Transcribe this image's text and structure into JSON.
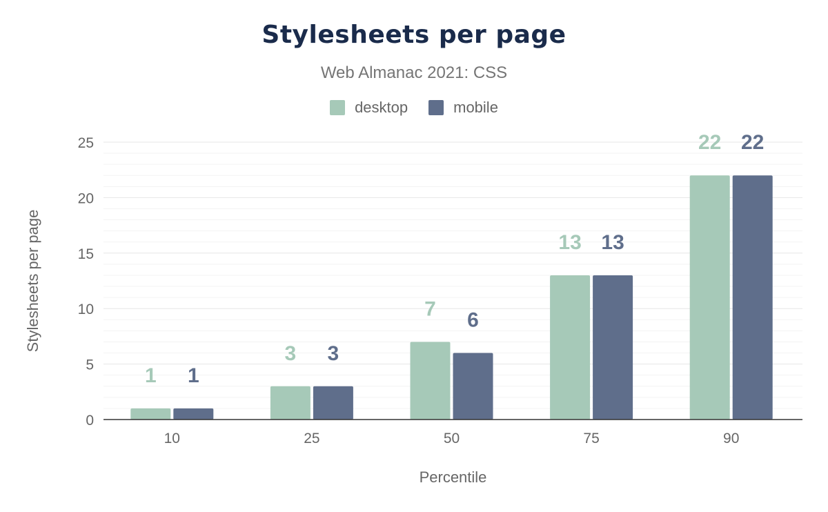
{
  "chart_data": {
    "type": "bar",
    "title": "Stylesheets per page",
    "subtitle": "Web Almanac 2021: CSS",
    "xlabel": "Percentile",
    "ylabel": "Stylesheets per page",
    "categories": [
      "10",
      "25",
      "50",
      "75",
      "90"
    ],
    "series": [
      {
        "name": "desktop",
        "values": [
          1,
          3,
          7,
          13,
          22
        ],
        "color": "#a6c9b8"
      },
      {
        "name": "mobile",
        "values": [
          1,
          3,
          6,
          13,
          22
        ],
        "color": "#5f6e8b"
      }
    ],
    "ylim": [
      0,
      25
    ],
    "yticks": [
      0,
      5,
      10,
      15,
      20,
      25
    ],
    "grid": true,
    "legend": "top-center",
    "data_labels": true
  }
}
